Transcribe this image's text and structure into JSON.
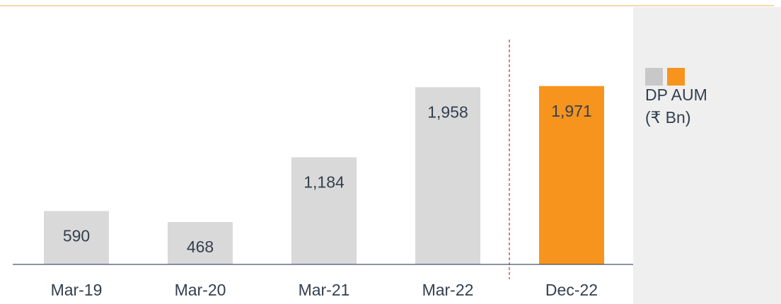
{
  "chart_data": {
    "type": "bar",
    "categories": [
      "Mar-19",
      "Mar-20",
      "Mar-21",
      "Mar-22",
      "Dec-22"
    ],
    "values": [
      590,
      468,
      1184,
      1958,
      1971
    ],
    "value_labels": [
      "590",
      "468",
      "1,184",
      "1,958",
      "1,971"
    ],
    "colors": [
      "#d9d9d9",
      "#d9d9d9",
      "#d9d9d9",
      "#d9d9d9",
      "#f7941d"
    ],
    "legend": [
      "DP AUM",
      "(₹ Bn)"
    ],
    "legend_colors": [
      "#c8c8c8",
      "#f7941d"
    ],
    "ylim": [
      0,
      2000
    ]
  }
}
